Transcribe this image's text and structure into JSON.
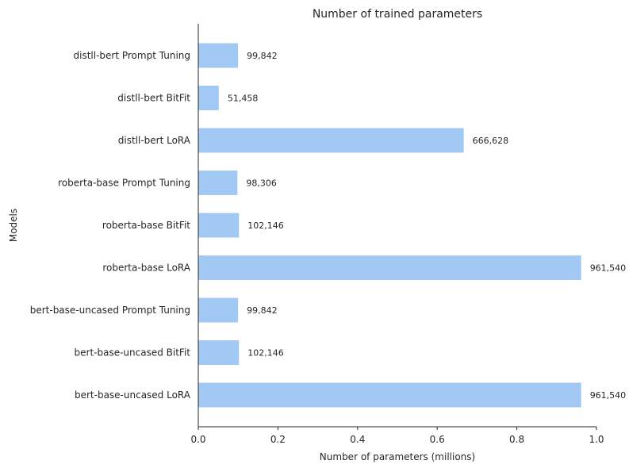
{
  "chart_data": {
    "type": "bar",
    "orientation": "horizontal",
    "title": "Number of trained parameters",
    "xlabel": "Number of parameters (millions)",
    "ylabel": "Models",
    "xlim": [
      0,
      1.0
    ],
    "xticks": [
      "0.0",
      "0.2",
      "0.4",
      "0.6",
      "0.8",
      "1.0"
    ],
    "bar_color": "#a1c9f4",
    "grid": false,
    "categories": [
      "distll-bert Prompt Tuning",
      "distll-bert BitFit",
      "distll-bert LoRA",
      "roberta-base Prompt Tuning",
      "roberta-base BitFit",
      "roberta-base LoRA",
      "bert-base-uncased Prompt Tuning",
      "bert-base-uncased BitFit",
      "bert-base-uncased LoRA"
    ],
    "values": [
      0.099842,
      0.051458,
      0.666628,
      0.098306,
      0.102146,
      0.96154,
      0.099842,
      0.102146,
      0.96154
    ],
    "data_labels": [
      "99,842",
      "51,458",
      "666,628",
      "98,306",
      "102,146",
      "961,540",
      "99,842",
      "102,146",
      "961,540"
    ]
  }
}
